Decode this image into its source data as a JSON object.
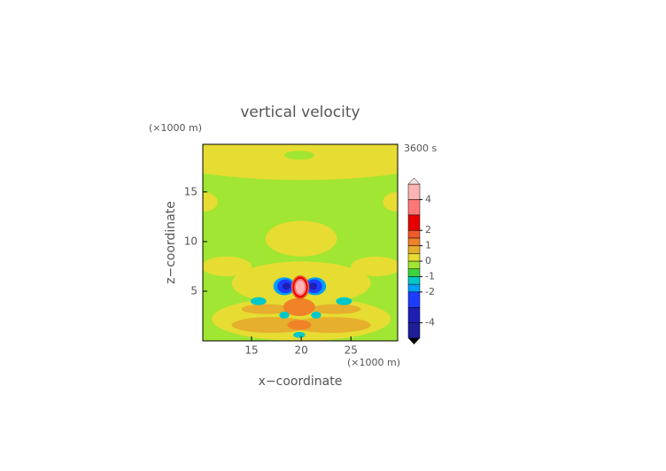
{
  "chart_data": {
    "type": "contour",
    "title": "vertical velocity",
    "subtitle": "3600 s",
    "x_label": "x−coordinate",
    "y_label": "z−coordinate",
    "x_unit": "(×1000 m)",
    "y_unit": "(×1000 m)",
    "xlim": [
      10.1,
      29.7
    ],
    "xticks": [
      15,
      20,
      25
    ],
    "ylim": [
      0,
      19.8
    ],
    "yticks": [
      5,
      10,
      15
    ],
    "background_value": -0.2,
    "features": [
      {
        "x": 20,
        "y": 19.8,
        "rx": 17,
        "ry": 3.6,
        "value": 0.2
      },
      {
        "x": 19.8,
        "y": 18.7,
        "rx": 1.5,
        "ry": 0.45,
        "value": -0.2
      },
      {
        "x": 10.1,
        "y": 14,
        "rx": 1.5,
        "ry": 1,
        "value": 0.2
      },
      {
        "x": 29.7,
        "y": 14,
        "rx": 1.5,
        "ry": 1,
        "value": 0.2
      },
      {
        "x": 20,
        "y": 10.3,
        "rx": 3.6,
        "ry": 1.8,
        "value": 0.2
      },
      {
        "x": 20,
        "y": 5.8,
        "rx": 7,
        "ry": 2.2,
        "value": 0.2
      },
      {
        "x": 12.5,
        "y": 7.5,
        "rx": 2.5,
        "ry": 1,
        "value": 0.2
      },
      {
        "x": 27.5,
        "y": 7.5,
        "rx": 2.5,
        "ry": 1,
        "value": 0.2
      },
      {
        "x": 20,
        "y": 2.2,
        "rx": 9,
        "ry": 2.2,
        "value": 0.2
      },
      {
        "x": 17,
        "y": 1.6,
        "rx": 4,
        "ry": 0.8,
        "value": 0.7
      },
      {
        "x": 23,
        "y": 1.6,
        "rx": 4,
        "ry": 0.8,
        "value": 0.7
      },
      {
        "x": 16.5,
        "y": 3.2,
        "rx": 2.5,
        "ry": 0.5,
        "value": 0.7
      },
      {
        "x": 23.5,
        "y": 3.2,
        "rx": 2.5,
        "ry": 0.5,
        "value": 0.7
      },
      {
        "x": 19.8,
        "y": 3.4,
        "rx": 1.6,
        "ry": 0.9,
        "value": 1.2
      },
      {
        "x": 19.8,
        "y": 1.6,
        "rx": 1.2,
        "ry": 0.5,
        "value": 1.2
      },
      {
        "x": 15.7,
        "y": 4,
        "rx": 0.8,
        "ry": 0.4,
        "value": -1.2
      },
      {
        "x": 24.3,
        "y": 4,
        "rx": 0.8,
        "ry": 0.4,
        "value": -1.2
      },
      {
        "x": 18.3,
        "y": 2.6,
        "rx": 0.5,
        "ry": 0.35,
        "value": -1.2
      },
      {
        "x": 21.5,
        "y": 2.6,
        "rx": 0.5,
        "ry": 0.35,
        "value": -1.2
      },
      {
        "x": 19.8,
        "y": 0.6,
        "rx": 0.6,
        "ry": 0.3,
        "value": -1.2
      },
      {
        "x": 18.3,
        "y": 5.5,
        "rx": 1.1,
        "ry": 0.9,
        "value": -1.7
      },
      {
        "x": 21.4,
        "y": 5.5,
        "rx": 1.1,
        "ry": 0.9,
        "value": -1.7
      },
      {
        "x": 18.4,
        "y": 5.5,
        "rx": 0.8,
        "ry": 0.7,
        "value": -2.5
      },
      {
        "x": 21.3,
        "y": 5.5,
        "rx": 0.8,
        "ry": 0.7,
        "value": -2.5
      },
      {
        "x": 18.5,
        "y": 5.5,
        "rx": 0.4,
        "ry": 0.35,
        "value": -3.5
      },
      {
        "x": 21.2,
        "y": 5.5,
        "rx": 0.4,
        "ry": 0.35,
        "value": -3.5
      },
      {
        "x": 19.9,
        "y": 5.4,
        "rx": 0.9,
        "ry": 1.2,
        "value": 1.7
      },
      {
        "x": 19.9,
        "y": 5.4,
        "rx": 0.75,
        "ry": 1.05,
        "value": 2.5
      },
      {
        "x": 19.9,
        "y": 5.4,
        "rx": 0.6,
        "ry": 0.85,
        "value": 3.5
      },
      {
        "x": 19.9,
        "y": 5.4,
        "rx": 0.45,
        "ry": 0.65,
        "value": 4.5
      }
    ],
    "colorbar": {
      "bounds": [
        -5,
        -4,
        -3,
        -2,
        -1.5,
        -1,
        -0.5,
        0,
        0.5,
        1,
        1.5,
        2,
        3,
        4,
        5
      ],
      "colors": [
        "#1e1e96",
        "#1e1eb4",
        "#1e3cff",
        "#00a0ff",
        "#00c8c8",
        "#3cd23c",
        "#a0e632",
        "#e6dc32",
        "#e6af2d",
        "#f08228",
        "#f05a28",
        "#e60000",
        "#ff7878",
        "#ffb4b4"
      ],
      "ticks": [
        4,
        2,
        1,
        0,
        -1,
        -2,
        -4
      ]
    }
  }
}
